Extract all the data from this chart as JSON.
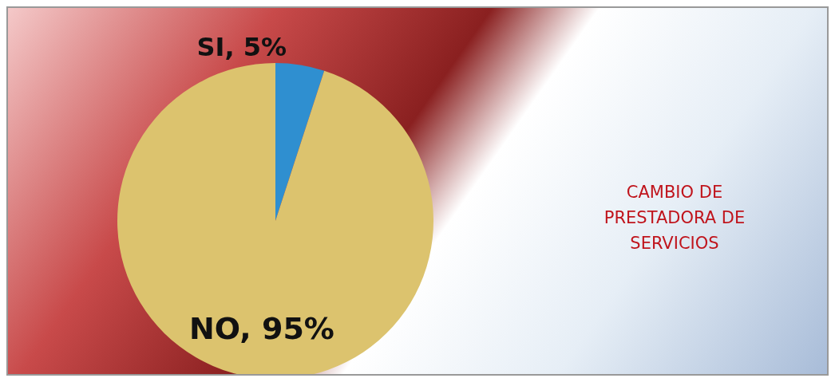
{
  "chart_data": {
    "type": "pie",
    "title": "CAMBIO DE PRESTADORA DE SERVICIOS",
    "categories": [
      "SI",
      "NO"
    ],
    "values": [
      5,
      95
    ],
    "value_labels": [
      "5%",
      "95%"
    ],
    "colors": [
      "#2f8fd0",
      "#dcc36e"
    ]
  }
}
